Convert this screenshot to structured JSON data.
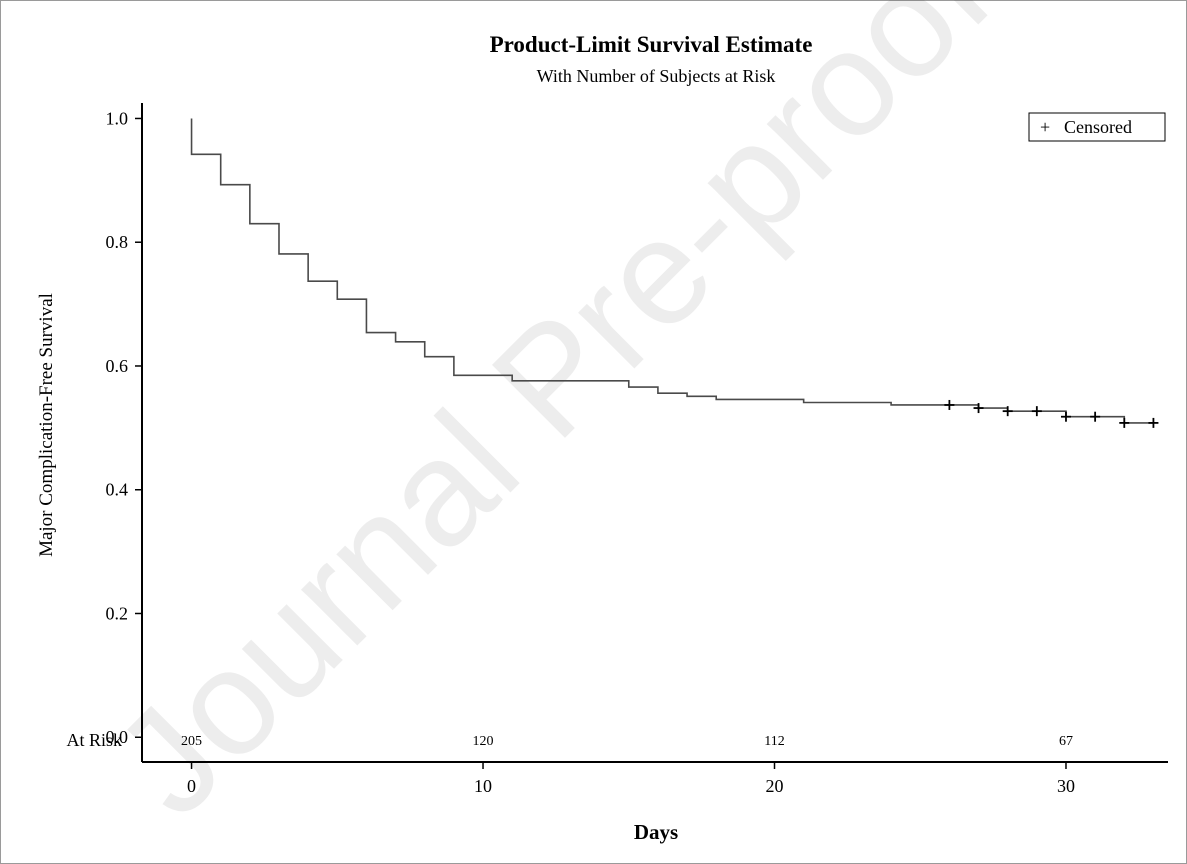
{
  "watermark": "Journal Pre-proof",
  "chart_data": {
    "type": "line",
    "step": true,
    "title": "Product-Limit Survival Estimate",
    "subtitle": "With Number of Subjects at Risk",
    "xlabel": "Days",
    "ylabel": "Major Complication-Free Survival",
    "xlim": [
      -1.7,
      33.5
    ],
    "ylim": [
      -0.04,
      1.025
    ],
    "xticks": [
      "0",
      "10",
      "20",
      "30"
    ],
    "yticks": [
      "0.0",
      "0.2",
      "0.4",
      "0.6",
      "0.8",
      "1.0"
    ],
    "grid": false,
    "legend": {
      "position": "top-right",
      "entries": [
        {
          "symbol": "+",
          "label": "Censored"
        }
      ]
    },
    "series": [
      {
        "x": [
          0,
          0,
          1,
          2,
          3,
          4,
          5,
          6,
          7,
          8,
          9,
          11,
          15,
          16,
          17,
          18,
          21,
          24,
          27,
          28,
          30,
          32,
          33
        ],
        "y": [
          1.0,
          0.942,
          0.893,
          0.83,
          0.781,
          0.737,
          0.708,
          0.654,
          0.639,
          0.615,
          0.585,
          0.576,
          0.566,
          0.556,
          0.551,
          0.546,
          0.541,
          0.537,
          0.532,
          0.527,
          0.518,
          0.508,
          0.508
        ]
      }
    ],
    "censored": {
      "x": [
        26,
        27,
        28,
        29,
        30,
        31,
        32,
        33
      ],
      "y": [
        0.537,
        0.532,
        0.527,
        0.527,
        0.518,
        0.518,
        0.508,
        0.508
      ]
    },
    "at_risk": {
      "label": "At Risk",
      "x": [
        0,
        10,
        20,
        30
      ],
      "values": [
        "205",
        "120",
        "112",
        "67"
      ]
    }
  }
}
